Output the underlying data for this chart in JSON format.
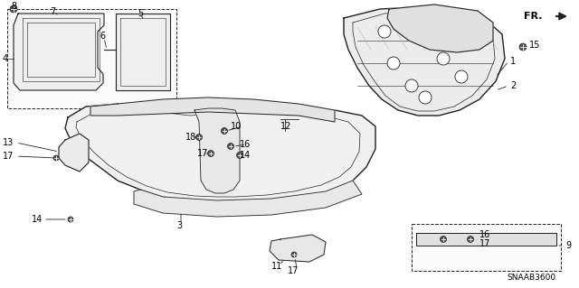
{
  "bg_color": "#ffffff",
  "diagram_code": "SNAAB3600",
  "line_color": "#222222",
  "text_color": "#000000",
  "dpi": 100,
  "figw": 6.4,
  "figh": 3.19,
  "image_b64": ""
}
